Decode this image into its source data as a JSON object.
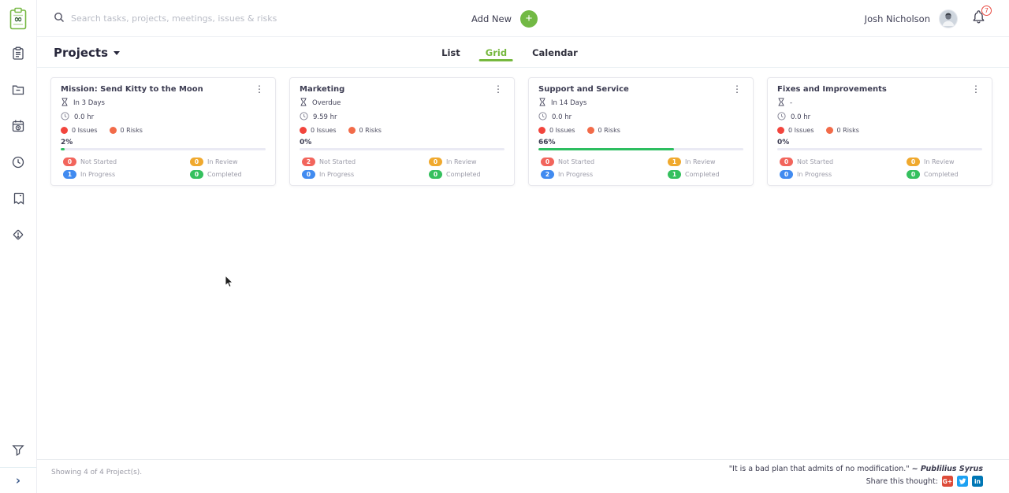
{
  "topbar": {
    "search_placeholder": "Search tasks, projects, meetings, issues & risks",
    "add_new_label": "Add New",
    "user_name": "Josh Nicholson",
    "notification_count": "7"
  },
  "sidebar": {
    "logo": "ntask-logo",
    "nav_icons": [
      "tasks",
      "projects",
      "meetings",
      "timesheets",
      "issues",
      "risks"
    ],
    "footer_icons": [
      "filter",
      "expand"
    ]
  },
  "subheader": {
    "title": "Projects",
    "tabs": [
      {
        "label": "List",
        "active": false
      },
      {
        "label": "Grid",
        "active": true
      },
      {
        "label": "Calendar",
        "active": false
      }
    ]
  },
  "status_labels": {
    "not_started": "Not Started",
    "in_review": "In Review",
    "in_progress": "In Progress",
    "completed": "Completed"
  },
  "cards": [
    {
      "title": "Mission: Send Kitty to the Moon",
      "deadline": "In 3 Days",
      "hours": "0.0 hr",
      "issues": "0 Issues",
      "risks": "0 Risks",
      "progress_label": "2%",
      "progress_percent": 2,
      "counts": {
        "not_started": "0",
        "in_review": "0",
        "in_progress": "1",
        "completed": "0"
      }
    },
    {
      "title": "Marketing",
      "deadline": "Overdue",
      "hours": "9.59 hr",
      "issues": "0 Issues",
      "risks": "0 Risks",
      "progress_label": "0%",
      "progress_percent": 0,
      "counts": {
        "not_started": "2",
        "in_review": "0",
        "in_progress": "0",
        "completed": "0"
      }
    },
    {
      "title": "Support and Service",
      "deadline": "In 14 Days",
      "hours": "0.0 hr",
      "issues": "0 Issues",
      "risks": "0 Risks",
      "progress_label": "66%",
      "progress_percent": 66,
      "counts": {
        "not_started": "0",
        "in_review": "1",
        "in_progress": "2",
        "completed": "1"
      }
    },
    {
      "title": "Fixes and Improvements",
      "deadline": "-",
      "hours": "0.0 hr",
      "issues": "0 Issues",
      "risks": "0 Risks",
      "progress_label": "0%",
      "progress_percent": 0,
      "counts": {
        "not_started": "0",
        "in_review": "0",
        "in_progress": "0",
        "completed": "0"
      }
    }
  ],
  "footer": {
    "showing": "Showing 4 of 4 Project(s).",
    "quote": "\"It is a bad plan that admits of no modification.\"",
    "quote_author": "~ Publilius Syrus",
    "share_label": "Share this thought:",
    "social": [
      {
        "name": "google-plus",
        "label": "G+"
      },
      {
        "name": "twitter",
        "label": ""
      },
      {
        "name": "linkedin",
        "label": "in"
      }
    ]
  },
  "colors": {
    "brand_green": "#76b83e",
    "add_button_green": "#72b944",
    "progress_green": "#2dbe60",
    "progress_track": "#eaeaf4",
    "status_not_started": "#f2655c",
    "status_in_review": "#f0a92e",
    "status_in_progress": "#418bf0",
    "status_completed": "#35c05e",
    "issue_dot": "#f2453d",
    "risk_dot": "#f26b49",
    "notification_red": "#e8483f",
    "gplus_red": "#dd4b39",
    "twitter_blue": "#1da1f2",
    "linkedin_blue": "#0077b5"
  }
}
